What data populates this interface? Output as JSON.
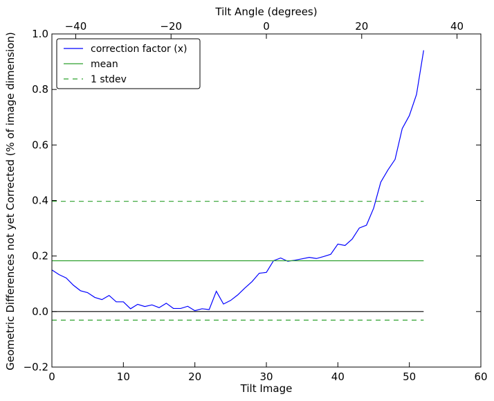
{
  "chart_data": {
    "type": "line",
    "title": "",
    "xlabel": "Tilt Image",
    "ylabel": "Geometric Differences not yet Corrected (% of image dimension)",
    "x2label": "Tilt Angle (degrees)",
    "xlim": [
      0,
      60
    ],
    "ylim": [
      -0.2,
      1.0
    ],
    "x2lim": [
      -45,
      45
    ],
    "xticks": [
      0,
      10,
      20,
      30,
      40,
      50,
      60
    ],
    "yticks": [
      -0.2,
      0.0,
      0.2,
      0.4,
      0.6,
      0.8,
      1.0
    ],
    "x2ticks": [
      -40,
      -20,
      0,
      20,
      40
    ],
    "ytick_labels": [
      "−0.2",
      "0.0",
      "0.2",
      "0.4",
      "0.6",
      "0.8",
      "1.0"
    ],
    "x2tick_labels": [
      "−40",
      "−20",
      "0",
      "20",
      "40"
    ],
    "grid": false,
    "legend_position": "top-left",
    "series": [
      {
        "name": "correction factor (x)",
        "color": "#0000ff",
        "style": "solid",
        "x": [
          0,
          1,
          2,
          3,
          4,
          5,
          6,
          7,
          8,
          9,
          10,
          11,
          12,
          13,
          14,
          15,
          16,
          17,
          18,
          19,
          20,
          21,
          22,
          23,
          24,
          25,
          26,
          27,
          28,
          29,
          30,
          31,
          32,
          33,
          34,
          35,
          36,
          37,
          38,
          39,
          40,
          41,
          42,
          43,
          44,
          45,
          46,
          47,
          48,
          49,
          50,
          51,
          52
        ],
        "values": [
          0.15,
          0.133,
          0.121,
          0.095,
          0.075,
          0.068,
          0.051,
          0.043,
          0.058,
          0.035,
          0.035,
          0.01,
          0.026,
          0.018,
          0.024,
          0.014,
          0.03,
          0.011,
          0.011,
          0.019,
          0.003,
          0.01,
          0.007,
          0.073,
          0.027,
          0.04,
          0.06,
          0.085,
          0.108,
          0.138,
          0.141,
          0.183,
          0.193,
          0.181,
          0.185,
          0.19,
          0.195,
          0.191,
          0.198,
          0.206,
          0.243,
          0.238,
          0.261,
          0.301,
          0.311,
          0.372,
          0.466,
          0.51,
          0.548,
          0.659,
          0.706,
          0.782,
          0.941
        ]
      },
      {
        "name": "mean",
        "color": "#2ca02c",
        "style": "solid",
        "x": [
          0,
          52
        ],
        "values": [
          0.183,
          0.183
        ]
      },
      {
        "name": "1 stdev",
        "color": "#2ca02c",
        "style": "dashed",
        "x": [
          0,
          52
        ],
        "values": [
          0.397,
          0.397
        ]
      },
      {
        "name": "",
        "color": "#2ca02c",
        "style": "dashed",
        "x": [
          0,
          52
        ],
        "values": [
          -0.031,
          -0.031
        ]
      },
      {
        "name": "",
        "color": "#000000",
        "style": "solid",
        "x": [
          0,
          52
        ],
        "values": [
          0.0,
          0.0
        ]
      }
    ],
    "legend": [
      {
        "label": "correction factor (x)",
        "color": "#0000ff",
        "style": "solid"
      },
      {
        "label": "mean",
        "color": "#2ca02c",
        "style": "solid"
      },
      {
        "label": "1 stdev",
        "color": "#2ca02c",
        "style": "dashed"
      }
    ]
  }
}
